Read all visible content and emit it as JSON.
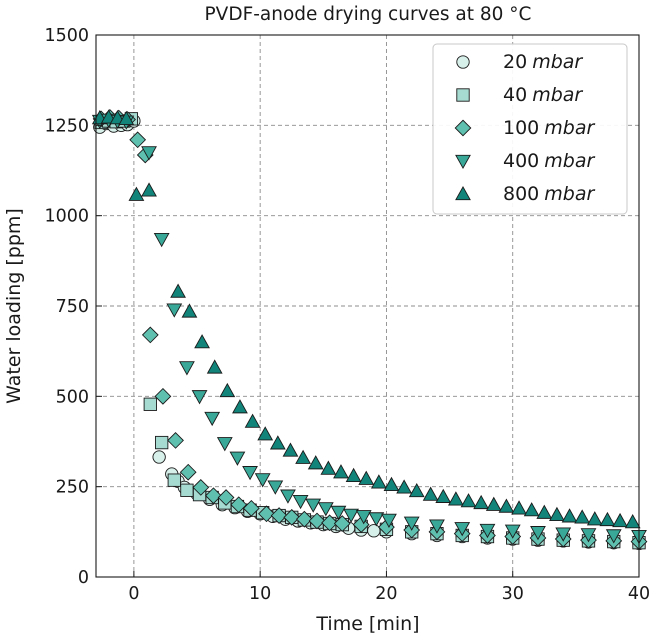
{
  "chart_data": {
    "type": "scatter",
    "title": "PVDF-anode drying curves at 80 °C",
    "xlabel": "Time [min]",
    "ylabel": "Water loading [ppm]",
    "xlim": [
      -3,
      40
    ],
    "ylim": [
      0,
      1500
    ],
    "xticks": [
      0,
      10,
      20,
      30,
      40
    ],
    "yticks": [
      0,
      250,
      500,
      750,
      1000,
      1250,
      1500
    ],
    "grid": true,
    "legend_position": "top-right",
    "series": [
      {
        "name": "20 mbar",
        "marker": "circle",
        "color": "#d8f0ea",
        "points": [
          [
            -2.7,
            1245
          ],
          [
            -2.2,
            1255
          ],
          [
            -1.6,
            1248
          ],
          [
            -1.0,
            1250
          ],
          [
            -0.5,
            1252
          ],
          [
            0.0,
            1262
          ],
          [
            2.0,
            332
          ],
          [
            3.0,
            285
          ],
          [
            3.5,
            265
          ],
          [
            4.0,
            248
          ],
          [
            5.0,
            230
          ],
          [
            6.0,
            215
          ],
          [
            7.0,
            200
          ],
          [
            8.0,
            192
          ],
          [
            9.0,
            182
          ],
          [
            10.0,
            175
          ],
          [
            11.0,
            168
          ],
          [
            12.0,
            160
          ],
          [
            13.0,
            155
          ],
          [
            14.0,
            150
          ],
          [
            15.0,
            145
          ],
          [
            16.0,
            140
          ],
          [
            17.0,
            135
          ],
          [
            18.0,
            130
          ],
          [
            19.0,
            128
          ],
          [
            20.0,
            125
          ],
          [
            22.0,
            120
          ],
          [
            24.0,
            115
          ],
          [
            26.0,
            112
          ],
          [
            28.0,
            108
          ],
          [
            30.0,
            105
          ],
          [
            32.0,
            102
          ],
          [
            34.0,
            100
          ],
          [
            36.0,
            97
          ],
          [
            38.0,
            95
          ],
          [
            40.0,
            93
          ]
        ]
      },
      {
        "name": "40 mbar",
        "marker": "square",
        "color": "#a6dbd1",
        "points": [
          [
            -2.6,
            1258
          ],
          [
            -2.0,
            1262
          ],
          [
            -1.4,
            1260
          ],
          [
            -0.8,
            1262
          ],
          [
            -0.2,
            1268
          ],
          [
            1.3,
            478
          ],
          [
            2.2,
            372
          ],
          [
            3.2,
            268
          ],
          [
            4.2,
            240
          ],
          [
            5.2,
            228
          ],
          [
            6.2,
            220
          ],
          [
            7.2,
            205
          ],
          [
            8.2,
            195
          ],
          [
            9.2,
            185
          ],
          [
            10.2,
            178
          ],
          [
            11.5,
            170
          ],
          [
            12.5,
            165
          ],
          [
            13.5,
            158
          ],
          [
            14.5,
            152
          ],
          [
            15.5,
            148
          ],
          [
            16.5,
            145
          ],
          [
            18.0,
            140
          ],
          [
            20.0,
            132
          ],
          [
            22.0,
            125
          ],
          [
            24.0,
            120
          ],
          [
            26.0,
            115
          ],
          [
            28.0,
            112
          ],
          [
            30.0,
            108
          ],
          [
            32.0,
            105
          ],
          [
            34.0,
            102
          ],
          [
            36.0,
            100
          ],
          [
            38.0,
            98
          ],
          [
            40.0,
            95
          ]
        ]
      },
      {
        "name": "100 mbar",
        "marker": "diamond",
        "color": "#5fc0b0",
        "points": [
          [
            -2.6,
            1268
          ],
          [
            -1.9,
            1272
          ],
          [
            -1.2,
            1270
          ],
          [
            -0.5,
            1266
          ],
          [
            0.3,
            1210
          ],
          [
            0.9,
            1168
          ],
          [
            1.3,
            670
          ],
          [
            2.3,
            500
          ],
          [
            3.3,
            378
          ],
          [
            4.3,
            290
          ],
          [
            5.3,
            248
          ],
          [
            6.3,
            225
          ],
          [
            7.3,
            220
          ],
          [
            8.3,
            200
          ],
          [
            9.3,
            190
          ],
          [
            10.5,
            175
          ],
          [
            11.5,
            170
          ],
          [
            12.5,
            165
          ],
          [
            13.5,
            160
          ],
          [
            14.5,
            155
          ],
          [
            15.5,
            150
          ],
          [
            16.5,
            148
          ],
          [
            18.0,
            145
          ],
          [
            20.0,
            138
          ],
          [
            22.0,
            130
          ],
          [
            24.0,
            125
          ],
          [
            26.0,
            120
          ],
          [
            28.0,
            115
          ],
          [
            30.0,
            112
          ],
          [
            32.0,
            108
          ],
          [
            34.0,
            105
          ],
          [
            36.0,
            102
          ],
          [
            38.0,
            100
          ],
          [
            40.0,
            98
          ]
        ]
      },
      {
        "name": "400 mbar",
        "marker": "triangle-down",
        "color": "#3aa898",
        "points": [
          [
            -2.7,
            1262
          ],
          [
            -2.0,
            1265
          ],
          [
            -1.3,
            1262
          ],
          [
            -0.6,
            1260
          ],
          [
            1.2,
            1175
          ],
          [
            2.2,
            935
          ],
          [
            3.2,
            740
          ],
          [
            4.2,
            580
          ],
          [
            5.2,
            500
          ],
          [
            6.2,
            440
          ],
          [
            7.2,
            370
          ],
          [
            8.2,
            330
          ],
          [
            9.2,
            290
          ],
          [
            10.2,
            270
          ],
          [
            11.2,
            250
          ],
          [
            12.2,
            225
          ],
          [
            13.2,
            210
          ],
          [
            14.2,
            200
          ],
          [
            15.2,
            190
          ],
          [
            16.2,
            180
          ],
          [
            17.2,
            172
          ],
          [
            18.2,
            168
          ],
          [
            19.2,
            162
          ],
          [
            20.2,
            158
          ],
          [
            22.0,
            150
          ],
          [
            24.0,
            142
          ],
          [
            26.0,
            135
          ],
          [
            28.0,
            130
          ],
          [
            30.0,
            128
          ],
          [
            32.0,
            124
          ],
          [
            34.0,
            120
          ],
          [
            36.0,
            118
          ],
          [
            38.0,
            115
          ],
          [
            40.0,
            113
          ]
        ]
      },
      {
        "name": "800 mbar",
        "marker": "triangle-up",
        "color": "#12847a",
        "points": [
          [
            -2.7,
            1270
          ],
          [
            -2.0,
            1272
          ],
          [
            -1.3,
            1270
          ],
          [
            -0.6,
            1268
          ],
          [
            0.2,
            1058
          ],
          [
            1.2,
            1070
          ],
          [
            3.5,
            790
          ],
          [
            4.4,
            735
          ],
          [
            5.4,
            650
          ],
          [
            6.4,
            580
          ],
          [
            7.4,
            515
          ],
          [
            8.4,
            470
          ],
          [
            9.4,
            430
          ],
          [
            10.4,
            395
          ],
          [
            11.4,
            370
          ],
          [
            12.4,
            350
          ],
          [
            13.4,
            330
          ],
          [
            14.4,
            315
          ],
          [
            15.4,
            300
          ],
          [
            16.4,
            290
          ],
          [
            17.4,
            280
          ],
          [
            18.4,
            272
          ],
          [
            19.4,
            262
          ],
          [
            20.4,
            255
          ],
          [
            21.4,
            248
          ],
          [
            22.4,
            238
          ],
          [
            23.5,
            228
          ],
          [
            24.5,
            222
          ],
          [
            25.5,
            215
          ],
          [
            26.5,
            210
          ],
          [
            27.5,
            205
          ],
          [
            28.5,
            200
          ],
          [
            29.5,
            195
          ],
          [
            30.5,
            190
          ],
          [
            31.5,
            185
          ],
          [
            32.5,
            178
          ],
          [
            33.5,
            172
          ],
          [
            34.5,
            168
          ],
          [
            35.5,
            165
          ],
          [
            36.5,
            160
          ],
          [
            37.5,
            158
          ],
          [
            38.5,
            155
          ],
          [
            39.5,
            152
          ]
        ]
      }
    ]
  }
}
